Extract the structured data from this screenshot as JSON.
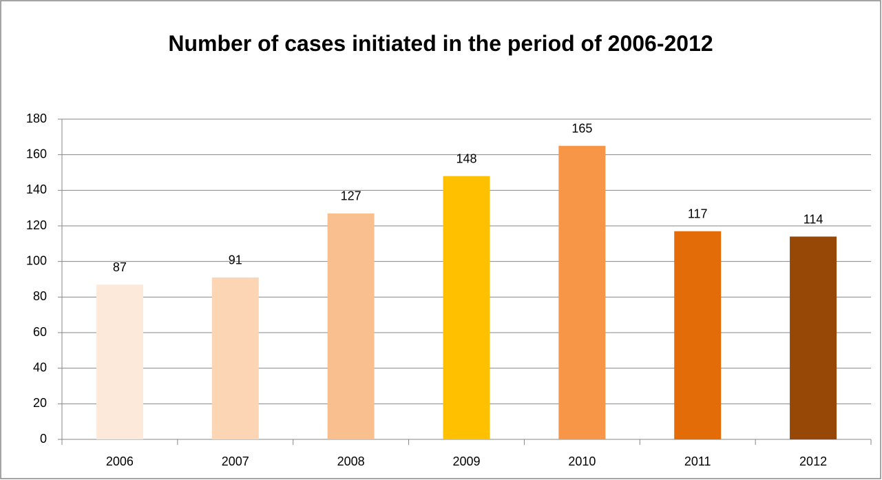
{
  "chart_data": {
    "type": "bar",
    "title": "Number of cases initiated in the period of 2006-2012",
    "categories": [
      "2006",
      "2007",
      "2008",
      "2009",
      "2010",
      "2011",
      "2012"
    ],
    "values": [
      87,
      91,
      127,
      148,
      165,
      117,
      114
    ],
    "colors": [
      "#fde9d9",
      "#fcd5b4",
      "#fabf8f",
      "#ffc000",
      "#f79646",
      "#e36c09",
      "#974806"
    ],
    "ylim": [
      0,
      180
    ],
    "yticks": [
      0,
      20,
      40,
      60,
      80,
      100,
      120,
      140,
      160,
      180
    ],
    "grid": true
  }
}
